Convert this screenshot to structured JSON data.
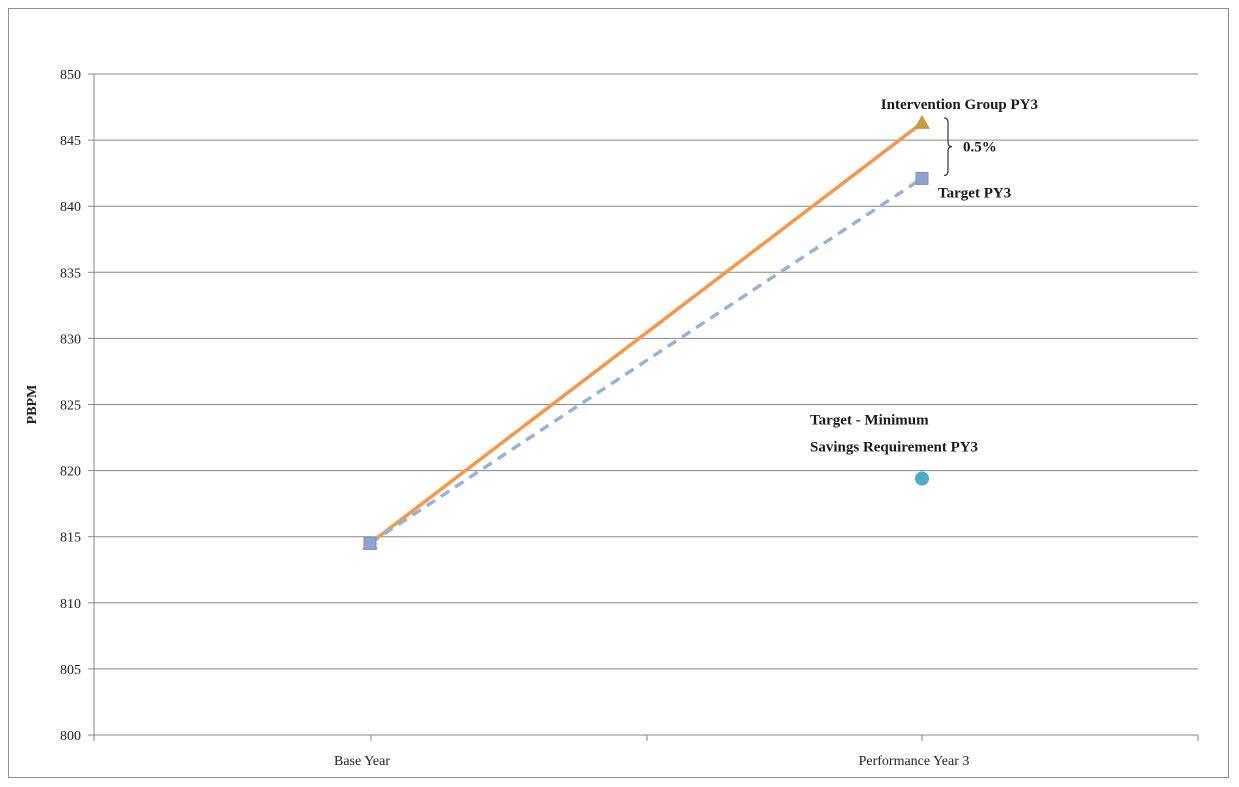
{
  "chart_data": {
    "type": "line",
    "title": "",
    "xlabel": "",
    "ylabel": "PBPM",
    "ylim": [
      800,
      850
    ],
    "y_ticks": [
      800,
      805,
      810,
      815,
      820,
      825,
      830,
      835,
      840,
      845,
      850
    ],
    "categories": [
      "Base Year",
      "Performance Year 3"
    ],
    "grid": true,
    "series": [
      {
        "key": "intervention",
        "values": [
          814.5,
          846.3
        ],
        "color": "#f79646",
        "line_style": "solid",
        "marker": "triangle",
        "marker_color": "#c59b45"
      },
      {
        "key": "target",
        "values": [
          814.5,
          842.1
        ],
        "color": "#95b3d7",
        "line_style": "dashed",
        "marker": "square",
        "marker_color": "#8fa2d4"
      },
      {
        "key": "minimum_savings",
        "values": [
          null,
          819.4
        ],
        "color": "#4bacc6",
        "line_style": "none",
        "marker": "circle",
        "marker_color": "#4bacc6"
      }
    ],
    "annotations": {
      "intervention_label": "Intervention Group PY3",
      "target_label": "Target PY3",
      "minimum_label_line1": "Target - Minimum",
      "minimum_label_line2": "Savings Requirement PY3",
      "difference_label": "0.5%"
    }
  }
}
